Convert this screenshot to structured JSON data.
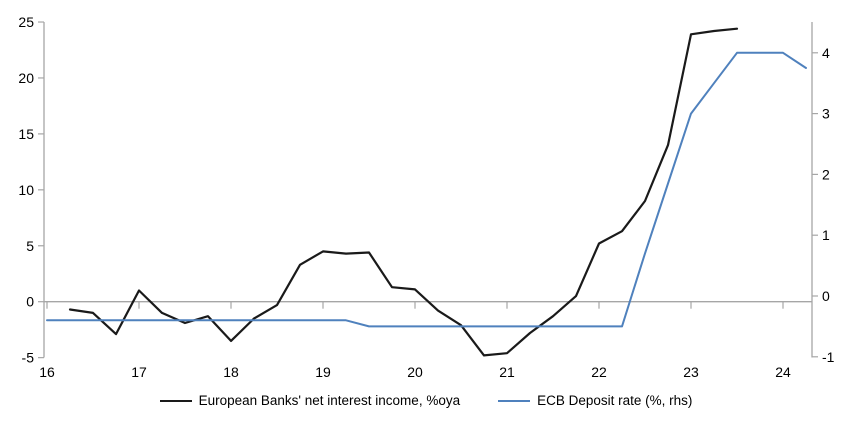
{
  "chart_data": {
    "type": "line",
    "title": "",
    "xlabel": "",
    "ylabel_left": "",
    "ylabel_right": "",
    "grid": "zero-line-only",
    "legend_position": "bottom",
    "x_axis": {
      "ticks": [
        16,
        17,
        18,
        19,
        20,
        21,
        22,
        23,
        24
      ],
      "range": [
        16,
        24.3
      ]
    },
    "left_axis": {
      "ticks": [
        25,
        20,
        15,
        10,
        5,
        0,
        -5
      ],
      "range": [
        -5,
        25
      ]
    },
    "right_axis": {
      "ticks": [
        4,
        3,
        2,
        1,
        0,
        -1
      ],
      "range": [
        -1.05,
        4.5
      ]
    },
    "series": [
      {
        "name": "European Banks' net interest income, %oya",
        "axis": "left",
        "color": "#1a1a1a",
        "width": 2.2,
        "x": [
          16.25,
          16.5,
          16.75,
          17.0,
          17.25,
          17.5,
          17.75,
          18.0,
          18.25,
          18.5,
          18.75,
          19.0,
          19.25,
          19.5,
          19.75,
          20.0,
          20.25,
          20.5,
          20.75,
          21.0,
          21.25,
          21.5,
          21.75,
          22.0,
          22.25,
          22.5,
          22.75,
          23.0,
          23.25,
          23.5
        ],
        "values": [
          -0.7,
          -1.0,
          -2.9,
          1.0,
          -1.0,
          -1.9,
          -1.3,
          -3.5,
          -1.5,
          -0.3,
          3.3,
          4.5,
          4.3,
          4.4,
          1.3,
          1.1,
          -0.8,
          -2.1,
          -4.8,
          -4.6,
          -2.8,
          -1.3,
          0.5,
          5.2,
          6.3,
          9.0,
          14.0,
          23.9,
          24.2,
          24.4
        ]
      },
      {
        "name": "ECB Deposit rate (%, rhs)",
        "axis": "right",
        "color": "#4f81bd",
        "width": 2,
        "x": [
          16.0,
          19.25,
          19.5,
          22.25,
          22.5,
          22.75,
          23.0,
          23.25,
          23.5,
          23.75,
          24.0,
          24.25
        ],
        "values": [
          -0.4,
          -0.4,
          -0.5,
          -0.5,
          0.7,
          1.85,
          3.0,
          3.5,
          4.0,
          4.0,
          4.0,
          3.75
        ]
      }
    ]
  },
  "legend": {
    "series1": "European Banks' net interest income, %oya",
    "series2": "ECB Deposit rate (%, rhs)"
  },
  "colors": {
    "axis_gray": "#a6a6a6",
    "text": "#000000",
    "series1": "#1a1a1a",
    "series2": "#4f81bd"
  }
}
